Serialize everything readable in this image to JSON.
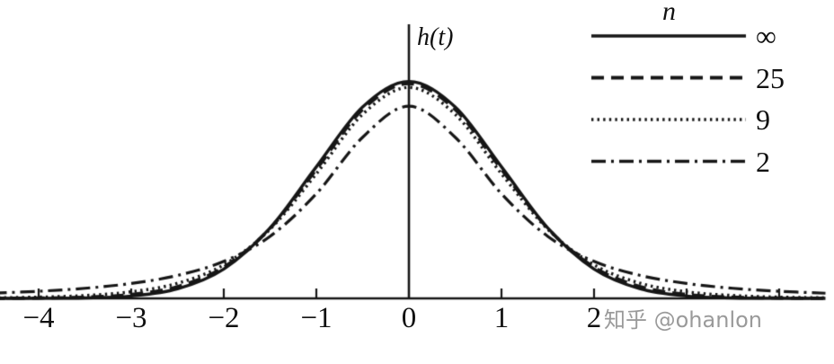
{
  "chart_data": {
    "type": "line",
    "title": "",
    "xlabel": "",
    "ylabel": "h(t)",
    "grid": false,
    "line_color": "#161616",
    "xlim": [
      -4.5,
      4.5
    ],
    "ylim": [
      0,
      0.45
    ],
    "x": [
      -4.5,
      -4,
      -3.5,
      -3,
      -2.5,
      -2,
      -1.5,
      -1,
      -0.5,
      0,
      0.5,
      1,
      1.5,
      2,
      2.5,
      3,
      3.5,
      4,
      4.5
    ],
    "series": [
      {
        "name": "∞",
        "dash": "solid",
        "values": [
          1.6e-05,
          0.000134,
          0.000873,
          0.004432,
          0.017528,
          0.053991,
          0.129518,
          0.241971,
          0.352065,
          0.398942,
          0.352065,
          0.241971,
          0.129518,
          0.053991,
          0.017528,
          0.004432,
          0.000873,
          0.000134,
          1.6e-05
        ]
      },
      {
        "name": "25",
        "dash": "dashed",
        "values": [
          0.000176,
          0.000636,
          0.002214,
          0.007257,
          0.021712,
          0.05738,
          0.1288,
          0.2372,
          0.3471,
          0.395,
          0.3471,
          0.2372,
          0.1288,
          0.05738,
          0.021712,
          0.007257,
          0.002214,
          0.000636,
          0.000176
        ]
      },
      {
        "name": "9",
        "dash": "dotted",
        "values": [
          0.00107,
          0.002346,
          0.005288,
          0.012126,
          0.02779,
          0.06171,
          0.12715,
          0.22913,
          0.3384,
          0.38803,
          0.3384,
          0.22913,
          0.12715,
          0.06171,
          0.02779,
          0.012126,
          0.005288,
          0.002346,
          0.00107
        ]
      },
      {
        "name": "2",
        "dash": "dashdot",
        "values": [
          0.009528,
          0.013095,
          0.01859,
          0.02741,
          0.0422,
          0.06804,
          0.11413,
          0.19245,
          0.2963,
          0.353553,
          0.2963,
          0.19245,
          0.11413,
          0.06804,
          0.0422,
          0.02741,
          0.01859,
          0.013095,
          0.009528
        ]
      }
    ],
    "legend": {
      "header": "n",
      "position": "top-right",
      "entries": [
        "∞",
        "25",
        "9",
        "2"
      ]
    },
    "xticks": [
      {
        "value": -4,
        "label": "−4"
      },
      {
        "value": -3,
        "label": "−3"
      },
      {
        "value": -2,
        "label": "−2"
      },
      {
        "value": -1,
        "label": "−1"
      },
      {
        "value": 0,
        "label": "0"
      },
      {
        "value": 1,
        "label": "1"
      },
      {
        "value": 2,
        "label": "2"
      }
    ],
    "xtick_marks": [
      -4,
      -3,
      -2,
      -1,
      1,
      2,
      3,
      4
    ]
  },
  "watermark": {
    "text": "知乎 @ohanlon",
    "color": "#9a9a9a"
  }
}
